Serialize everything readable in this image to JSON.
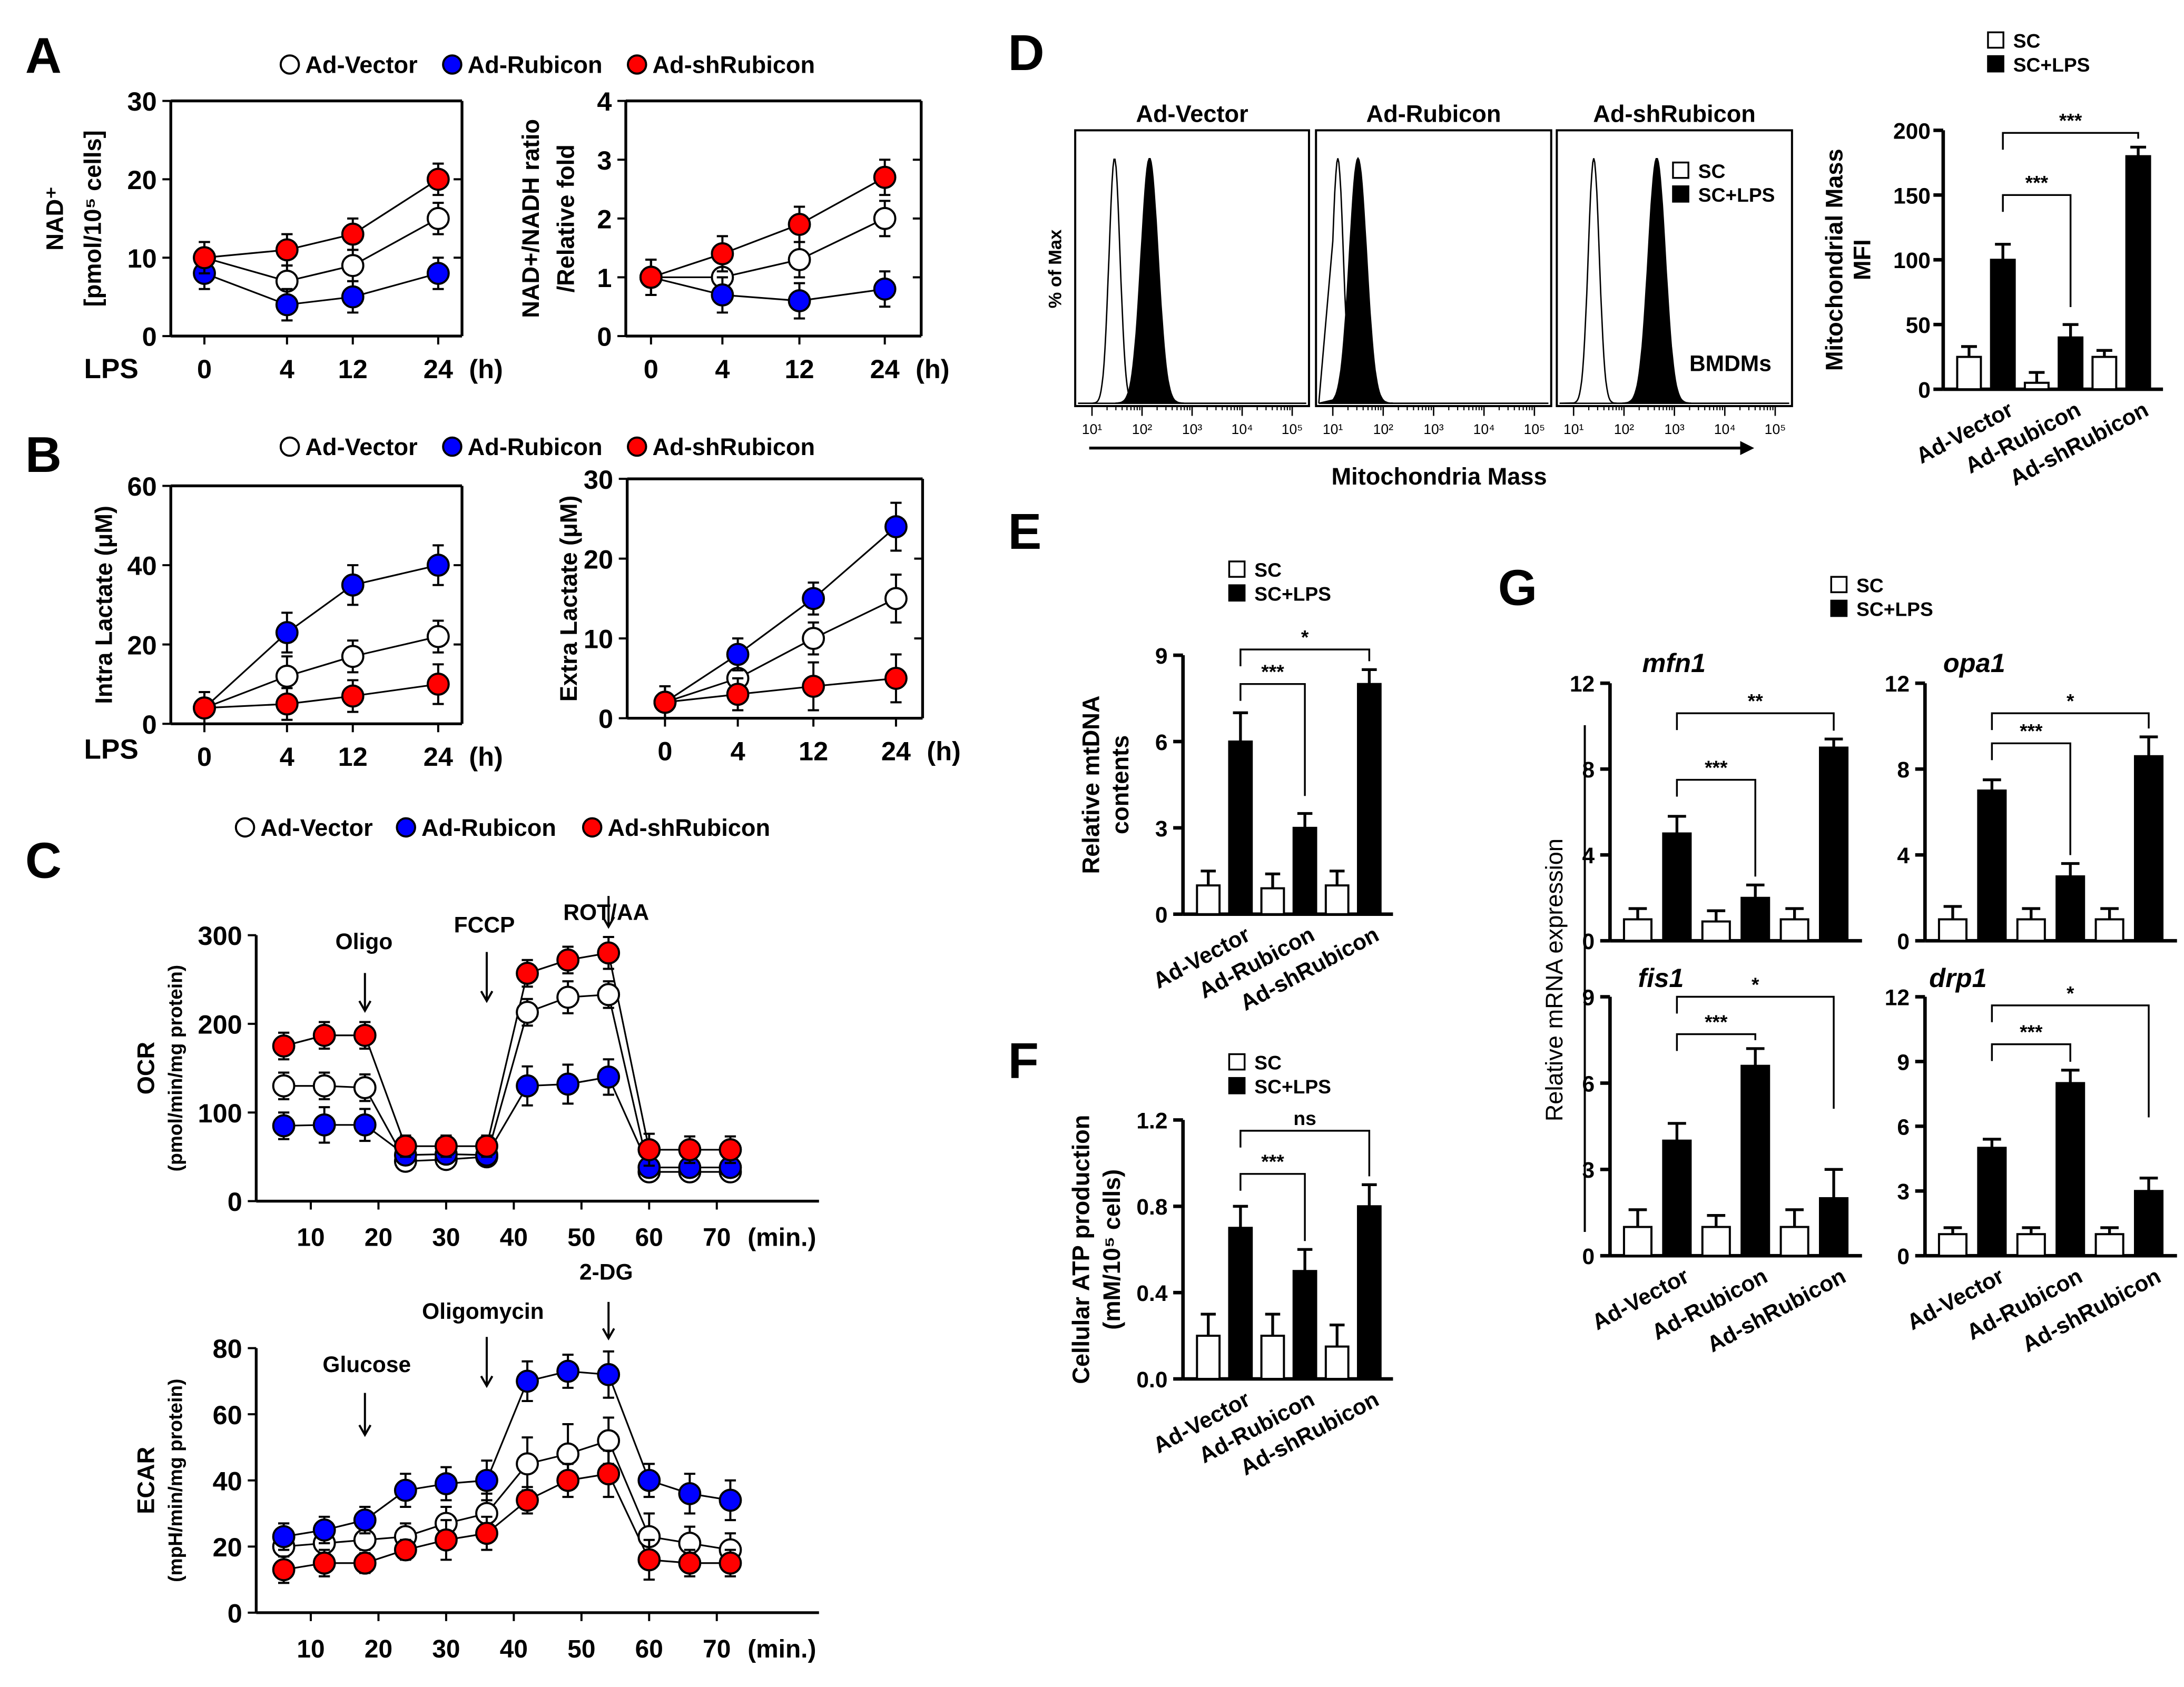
{
  "panels": {
    "A": "A",
    "B": "B",
    "C": "C",
    "D": "D",
    "E": "E",
    "F": "F",
    "G": "G"
  },
  "groups": [
    "Ad-Vector",
    "Ad-Rubicon",
    "Ad-shRubicon"
  ],
  "colors": {
    "Ad-Vector": "#ffffff",
    "Ad-Rubicon": "#0000ff",
    "Ad-shRubicon": "#ff0000",
    "SC": "#ffffff",
    "SC+LPS": "#000000"
  },
  "bar_legend": [
    "SC",
    "SC+LPS"
  ],
  "x_prefix": "LPS",
  "chart_data": [
    {
      "id": "A1",
      "type": "line",
      "panel": "A",
      "ylabel": [
        "NAD⁺",
        "[pmol/10⁵ cells]"
      ],
      "categories": [
        "0",
        "4",
        "12",
        "24"
      ],
      "xunit": "(h)",
      "ylim": [
        0,
        30
      ],
      "yticks": [
        0,
        10,
        20,
        30
      ],
      "series": [
        {
          "name": "Ad-Vector",
          "values": [
            10,
            7,
            9,
            15
          ],
          "err": [
            2,
            2,
            2,
            2
          ]
        },
        {
          "name": "Ad-Rubicon",
          "values": [
            8,
            4,
            5,
            8
          ],
          "err": [
            2,
            2,
            2,
            2
          ]
        },
        {
          "name": "Ad-shRubicon",
          "values": [
            10,
            11,
            13,
            20
          ],
          "err": [
            2,
            2,
            2,
            2
          ]
        }
      ]
    },
    {
      "id": "A2",
      "type": "line",
      "panel": "A",
      "ylabel": [
        "NAD+/NADH ratio",
        "/Relative fold"
      ],
      "categories": [
        "0",
        "4",
        "12",
        "24"
      ],
      "xunit": "(h)",
      "ylim": [
        0,
        4
      ],
      "yticks": [
        0,
        1,
        2,
        3,
        4
      ],
      "series": [
        {
          "name": "Ad-Vector",
          "values": [
            1,
            1,
            1.3,
            2
          ],
          "err": [
            0.3,
            0.3,
            0.3,
            0.3
          ]
        },
        {
          "name": "Ad-Rubicon",
          "values": [
            1,
            0.7,
            0.6,
            0.8
          ],
          "err": [
            0.3,
            0.3,
            0.3,
            0.3
          ]
        },
        {
          "name": "Ad-shRubicon",
          "values": [
            1,
            1.4,
            1.9,
            2.7
          ],
          "err": [
            0.3,
            0.3,
            0.3,
            0.3
          ]
        }
      ]
    },
    {
      "id": "B1",
      "type": "line",
      "panel": "B",
      "ylabel": [
        "Intra Lactate (μM)"
      ],
      "categories": [
        "0",
        "4",
        "12",
        "24"
      ],
      "xunit": "(h)",
      "ylim": [
        0,
        60
      ],
      "yticks": [
        0,
        20,
        40,
        60
      ],
      "series": [
        {
          "name": "Ad-Vector",
          "values": [
            4,
            12,
            17,
            22
          ],
          "err": [
            4,
            5,
            4,
            4
          ]
        },
        {
          "name": "Ad-Rubicon",
          "values": [
            4,
            23,
            35,
            40
          ],
          "err": [
            4,
            5,
            5,
            5
          ]
        },
        {
          "name": "Ad-shRubicon",
          "values": [
            4,
            5,
            7,
            10
          ],
          "err": [
            4,
            4,
            4,
            5
          ]
        }
      ]
    },
    {
      "id": "B2",
      "type": "line",
      "panel": "B",
      "ylabel": [
        "Extra Lactate (μM)"
      ],
      "categories": [
        "0",
        "4",
        "12",
        "24"
      ],
      "xunit": "(h)",
      "ylim": [
        0,
        30
      ],
      "yticks": [
        0,
        10,
        20,
        30
      ],
      "series": [
        {
          "name": "Ad-Vector",
          "values": [
            2,
            5,
            10,
            15
          ],
          "err": [
            2,
            2,
            2,
            3
          ]
        },
        {
          "name": "Ad-Rubicon",
          "values": [
            2,
            8,
            15,
            24
          ],
          "err": [
            2,
            2,
            2,
            3
          ]
        },
        {
          "name": "Ad-shRubicon",
          "values": [
            2,
            3,
            4,
            5
          ],
          "err": [
            2,
            2,
            3,
            3
          ]
        }
      ]
    },
    {
      "id": "C1",
      "type": "line",
      "panel": "C",
      "ylabel": [
        "OCR",
        "(pmol/min/mg protein)"
      ],
      "x": [
        6,
        12,
        18,
        24,
        30,
        36,
        42,
        48,
        54,
        60,
        66,
        72
      ],
      "xticks": [
        10,
        20,
        30,
        40,
        50,
        60,
        70
      ],
      "xunit": "(min.)",
      "ylim": [
        0,
        300
      ],
      "yticks": [
        0,
        100,
        200,
        300
      ],
      "annotations": [
        {
          "label": "Oligo",
          "x": 18
        },
        {
          "label": "FCCP",
          "x": 36
        },
        {
          "label": "ROT/AA",
          "x": 54
        }
      ],
      "series": [
        {
          "name": "Ad-Vector",
          "values": [
            130,
            130,
            128,
            45,
            47,
            50,
            213,
            230,
            233,
            33,
            33,
            33
          ],
          "err": [
            15,
            15,
            15,
            10,
            10,
            10,
            15,
            18,
            15,
            10,
            10,
            10
          ]
        },
        {
          "name": "Ad-Rubicon",
          "values": [
            85,
            86,
            86,
            52,
            53,
            52,
            130,
            132,
            140,
            38,
            38,
            38
          ],
          "err": [
            15,
            20,
            18,
            10,
            10,
            10,
            22,
            22,
            20,
            10,
            10,
            10
          ]
        },
        {
          "name": "Ad-shRubicon",
          "values": [
            175,
            187,
            187,
            62,
            62,
            62,
            257,
            272,
            280,
            58,
            58,
            58
          ],
          "err": [
            15,
            15,
            15,
            12,
            12,
            12,
            15,
            15,
            18,
            18,
            15,
            15
          ]
        }
      ]
    },
    {
      "id": "C2",
      "type": "line",
      "panel": "C",
      "ylabel": [
        "ECAR",
        "(mpH/min/mg protein)"
      ],
      "x": [
        6,
        12,
        18,
        24,
        30,
        36,
        42,
        48,
        54,
        60,
        66,
        72
      ],
      "xticks": [
        10,
        20,
        30,
        40,
        50,
        60,
        70
      ],
      "xunit": "(min.)",
      "ylim": [
        0,
        80
      ],
      "yticks": [
        0,
        20,
        40,
        60,
        80
      ],
      "annotations": [
        {
          "label": "Glucose",
          "x": 18
        },
        {
          "label": "Oligomycin",
          "x": 36
        },
        {
          "label": "2-DG",
          "x": 54
        }
      ],
      "series": [
        {
          "name": "Ad-Vector",
          "values": [
            20,
            21,
            22,
            23,
            27,
            30,
            45,
            48,
            52,
            23,
            21,
            19
          ],
          "err": [
            3,
            3,
            3,
            4,
            5,
            6,
            8,
            9,
            7,
            7,
            5,
            5
          ]
        },
        {
          "name": "Ad-Rubicon",
          "values": [
            23,
            25,
            28,
            37,
            39,
            40,
            70,
            73,
            72,
            40,
            36,
            34
          ],
          "err": [
            4,
            4,
            4,
            5,
            5,
            6,
            6,
            5,
            7,
            5,
            6,
            6
          ]
        },
        {
          "name": "Ad-shRubicon",
          "values": [
            13,
            15,
            15,
            19,
            22,
            24,
            34,
            40,
            42,
            16,
            15,
            15
          ],
          "err": [
            4,
            4,
            3,
            3,
            6,
            5,
            4,
            5,
            7,
            6,
            4,
            4
          ]
        }
      ]
    },
    {
      "id": "D1",
      "type": "histogram",
      "panel": "D",
      "ylabel": "% of Max",
      "xlabel": "Mitochondria Mass",
      "xticks": [
        "10¹",
        "10²",
        "10³",
        "10⁴",
        "10⁵"
      ],
      "note": "BMDMs",
      "series_names": [
        "SC",
        "SC+LPS"
      ],
      "histograms": [
        {
          "title": "Ad-Vector",
          "peak_log10": {
            "SC": 1.45,
            "SC+LPS": 2.15
          }
        },
        {
          "title": "Ad-Rubicon",
          "peak_log10": {
            "SC": 1.1,
            "SC+LPS": 1.5
          }
        },
        {
          "title": "Ad-shRubicon",
          "peak_log10": {
            "SC": 1.4,
            "SC+LPS": 2.65
          }
        }
      ]
    },
    {
      "id": "D2",
      "type": "bar",
      "panel": "D",
      "ylabel": [
        "Mitochondrial Mass",
        "MFI"
      ],
      "categories": [
        "Ad-Vector",
        "Ad-Rubicon",
        "Ad-shRubicon"
      ],
      "ylim": [
        0,
        200
      ],
      "yticks": [
        0,
        50,
        100,
        150,
        200
      ],
      "ytick_labels": [
        "0",
        "50",
        "100",
        "150",
        "200"
      ],
      "series": [
        {
          "name": "SC",
          "values": [
            25,
            5,
            25
          ],
          "err": [
            8,
            8,
            5
          ]
        },
        {
          "name": "SC+LPS",
          "values": [
            100,
            40,
            180
          ],
          "err": [
            12,
            10,
            7
          ]
        }
      ],
      "significance": [
        {
          "from": 0,
          "to": 1,
          "label": "***",
          "level": 150
        },
        {
          "from": 0,
          "to": 2,
          "label": "***",
          "level": 198
        }
      ]
    },
    {
      "id": "E",
      "type": "bar",
      "panel": "E",
      "ylabel": [
        "Relative mtDNA",
        "contents"
      ],
      "categories": [
        "Ad-Vector",
        "Ad-Rubicon",
        "Ad-shRubicon"
      ],
      "ylim": [
        0,
        9
      ],
      "yticks": [
        0,
        3,
        6,
        9
      ],
      "ytick_labels": [
        "0",
        "3",
        "6",
        "9"
      ],
      "series": [
        {
          "name": "SC",
          "values": [
            1,
            0.9,
            1
          ],
          "err": [
            0.5,
            0.5,
            0.5
          ]
        },
        {
          "name": "SC+LPS",
          "values": [
            6,
            3,
            8
          ],
          "err": [
            1,
            0.5,
            0.5
          ]
        }
      ],
      "significance": [
        {
          "from": 0,
          "to": 1,
          "label": "***",
          "level": 8
        },
        {
          "from": 0,
          "to": 2,
          "label": "*",
          "level": 9.2
        }
      ]
    },
    {
      "id": "F",
      "type": "bar",
      "panel": "F",
      "ylabel": [
        "Cellular ATP production",
        "(mM/10⁵ cells)"
      ],
      "categories": [
        "Ad-Vector",
        "Ad-Rubicon",
        "Ad-shRubicon"
      ],
      "ylim": [
        0,
        1.2
      ],
      "yticks": [
        0,
        0.4,
        0.8,
        1.2
      ],
      "ytick_labels": [
        "0.0",
        "0.4",
        "0.8",
        "1.2"
      ],
      "series": [
        {
          "name": "SC",
          "values": [
            0.2,
            0.2,
            0.15
          ],
          "err": [
            0.1,
            0.1,
            0.1
          ]
        },
        {
          "name": "SC+LPS",
          "values": [
            0.7,
            0.5,
            0.8
          ],
          "err": [
            0.1,
            0.1,
            0.1
          ]
        }
      ],
      "significance": [
        {
          "from": 0,
          "to": 1,
          "label": "***",
          "level": 0.95
        },
        {
          "from": 0,
          "to": 2,
          "label": "ns",
          "level": 1.15
        }
      ]
    },
    {
      "id": "G1",
      "type": "bar",
      "panel": "G",
      "title": "mfn1",
      "ylabel": [
        "Relative mRNA expression"
      ],
      "categories": [
        "Ad-Vector",
        "Ad-Rubicon",
        "Ad-shRubicon"
      ],
      "ylim": [
        0,
        12
      ],
      "yticks": [
        0,
        4,
        8,
        12
      ],
      "ytick_labels": [
        "0",
        "4",
        "8",
        "12"
      ],
      "series": [
        {
          "name": "SC",
          "values": [
            1,
            0.9,
            1
          ],
          "err": [
            0.5,
            0.5,
            0.5
          ]
        },
        {
          "name": "SC+LPS",
          "values": [
            5,
            2,
            9
          ],
          "err": [
            0.8,
            0.6,
            0.4
          ]
        }
      ],
      "significance": [
        {
          "from": 0,
          "to": 1,
          "label": "***",
          "level": 7.5
        },
        {
          "from": 0,
          "to": 2,
          "label": "**",
          "level": 10.6
        }
      ]
    },
    {
      "id": "G2",
      "type": "bar",
      "panel": "G",
      "title": "opa1",
      "categories": [
        "Ad-Vector",
        "Ad-Rubicon",
        "Ad-shRubicon"
      ],
      "ylim": [
        0,
        12
      ],
      "yticks": [
        0,
        4,
        8,
        12
      ],
      "ytick_labels": [
        "0",
        "4",
        "8",
        "12"
      ],
      "series": [
        {
          "name": "SC",
          "values": [
            1,
            1,
            1
          ],
          "err": [
            0.6,
            0.5,
            0.5
          ]
        },
        {
          "name": "SC+LPS",
          "values": [
            7,
            3,
            8.6
          ],
          "err": [
            0.5,
            0.6,
            0.9
          ]
        }
      ],
      "significance": [
        {
          "from": 0,
          "to": 1,
          "label": "***",
          "level": 9.2
        },
        {
          "from": 0,
          "to": 2,
          "label": "*",
          "level": 10.6
        }
      ]
    },
    {
      "id": "G3",
      "type": "bar",
      "panel": "G",
      "title": "fis1",
      "categories": [
        "Ad-Vector",
        "Ad-Rubicon",
        "Ad-shRubicon"
      ],
      "ylim": [
        0,
        9
      ],
      "yticks": [
        0,
        3,
        6,
        9
      ],
      "ytick_labels": [
        "0",
        "3",
        "6",
        "9"
      ],
      "series": [
        {
          "name": "SC",
          "values": [
            1,
            1,
            1
          ],
          "err": [
            0.6,
            0.4,
            0.6
          ]
        },
        {
          "name": "SC+LPS",
          "values": [
            4,
            6.6,
            2
          ],
          "err": [
            0.6,
            0.6,
            1
          ]
        }
      ],
      "significance": [
        {
          "from": 0,
          "to": 1,
          "label": "***",
          "level": 7.7
        },
        {
          "from": 0,
          "to": 2,
          "label": "*",
          "level": 9
        }
      ]
    },
    {
      "id": "G4",
      "type": "bar",
      "panel": "G",
      "title": "drp1",
      "categories": [
        "Ad-Vector",
        "Ad-Rubicon",
        "Ad-shRubicon"
      ],
      "ylim": [
        0,
        12
      ],
      "yticks": [
        0,
        3,
        6,
        9,
        12
      ],
      "ytick_labels": [
        "0",
        "3",
        "6",
        "9",
        "12"
      ],
      "series": [
        {
          "name": "SC",
          "values": [
            1,
            1,
            1
          ],
          "err": [
            0.3,
            0.3,
            0.3
          ]
        },
        {
          "name": "SC+LPS",
          "values": [
            5,
            8,
            3
          ],
          "err": [
            0.4,
            0.6,
            0.6
          ]
        }
      ],
      "significance": [
        {
          "from": 0,
          "to": 1,
          "label": "***",
          "level": 9.8
        },
        {
          "from": 0,
          "to": 2,
          "label": "*",
          "level": 11.6
        }
      ]
    }
  ]
}
